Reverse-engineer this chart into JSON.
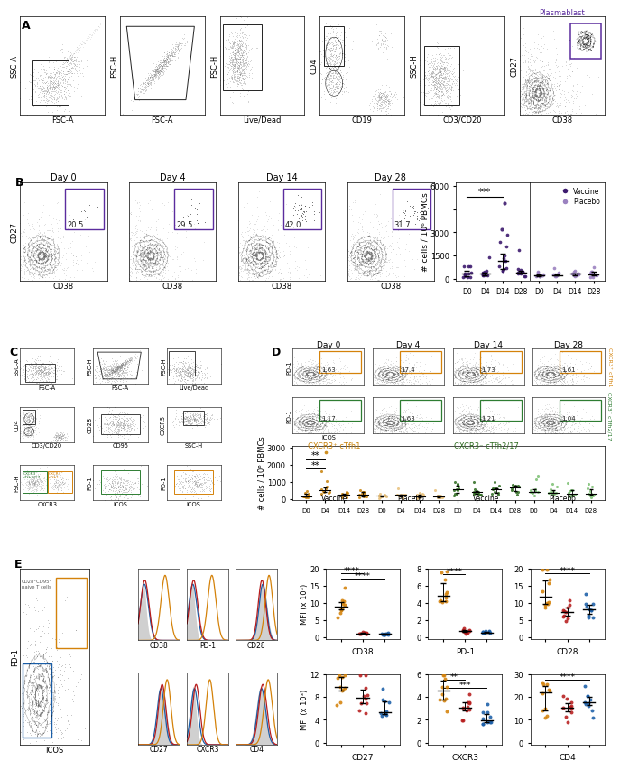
{
  "panel_label_fontsize": 9,
  "panel_label_fontweight": "bold",
  "tick_fontsize": 6,
  "axis_label_fontsize": 6.5,
  "title_fontsize": 7,
  "annotation_fontsize": 6,
  "vac_color": "#3D1A6E",
  "pla_color": "#9B82C0",
  "orange_dark": "#C8820A",
  "orange_light": "#E8C07A",
  "green_dark": "#2E6B20",
  "green_light": "#7CBF72",
  "hist_orange": "#D4820A",
  "hist_red": "#B71C1C",
  "hist_blue": "#1A5EA8",
  "hist_gray": "#AAAAAA",
  "purple_gate": "#5B2C9E",
  "black_gate": "#222222",
  "orange_gate": "#D4820A",
  "green_gate": "#2E7D32",
  "panelB_pct": [
    "20.5",
    "29.5",
    "42.0",
    "31.7"
  ],
  "panelD_orange": [
    "1.63",
    "17.4",
    "1.73",
    "1.61"
  ],
  "panelD_green": [
    "1.17",
    "1.63",
    "1.21",
    "1.04"
  ],
  "background": "#FFFFFF"
}
